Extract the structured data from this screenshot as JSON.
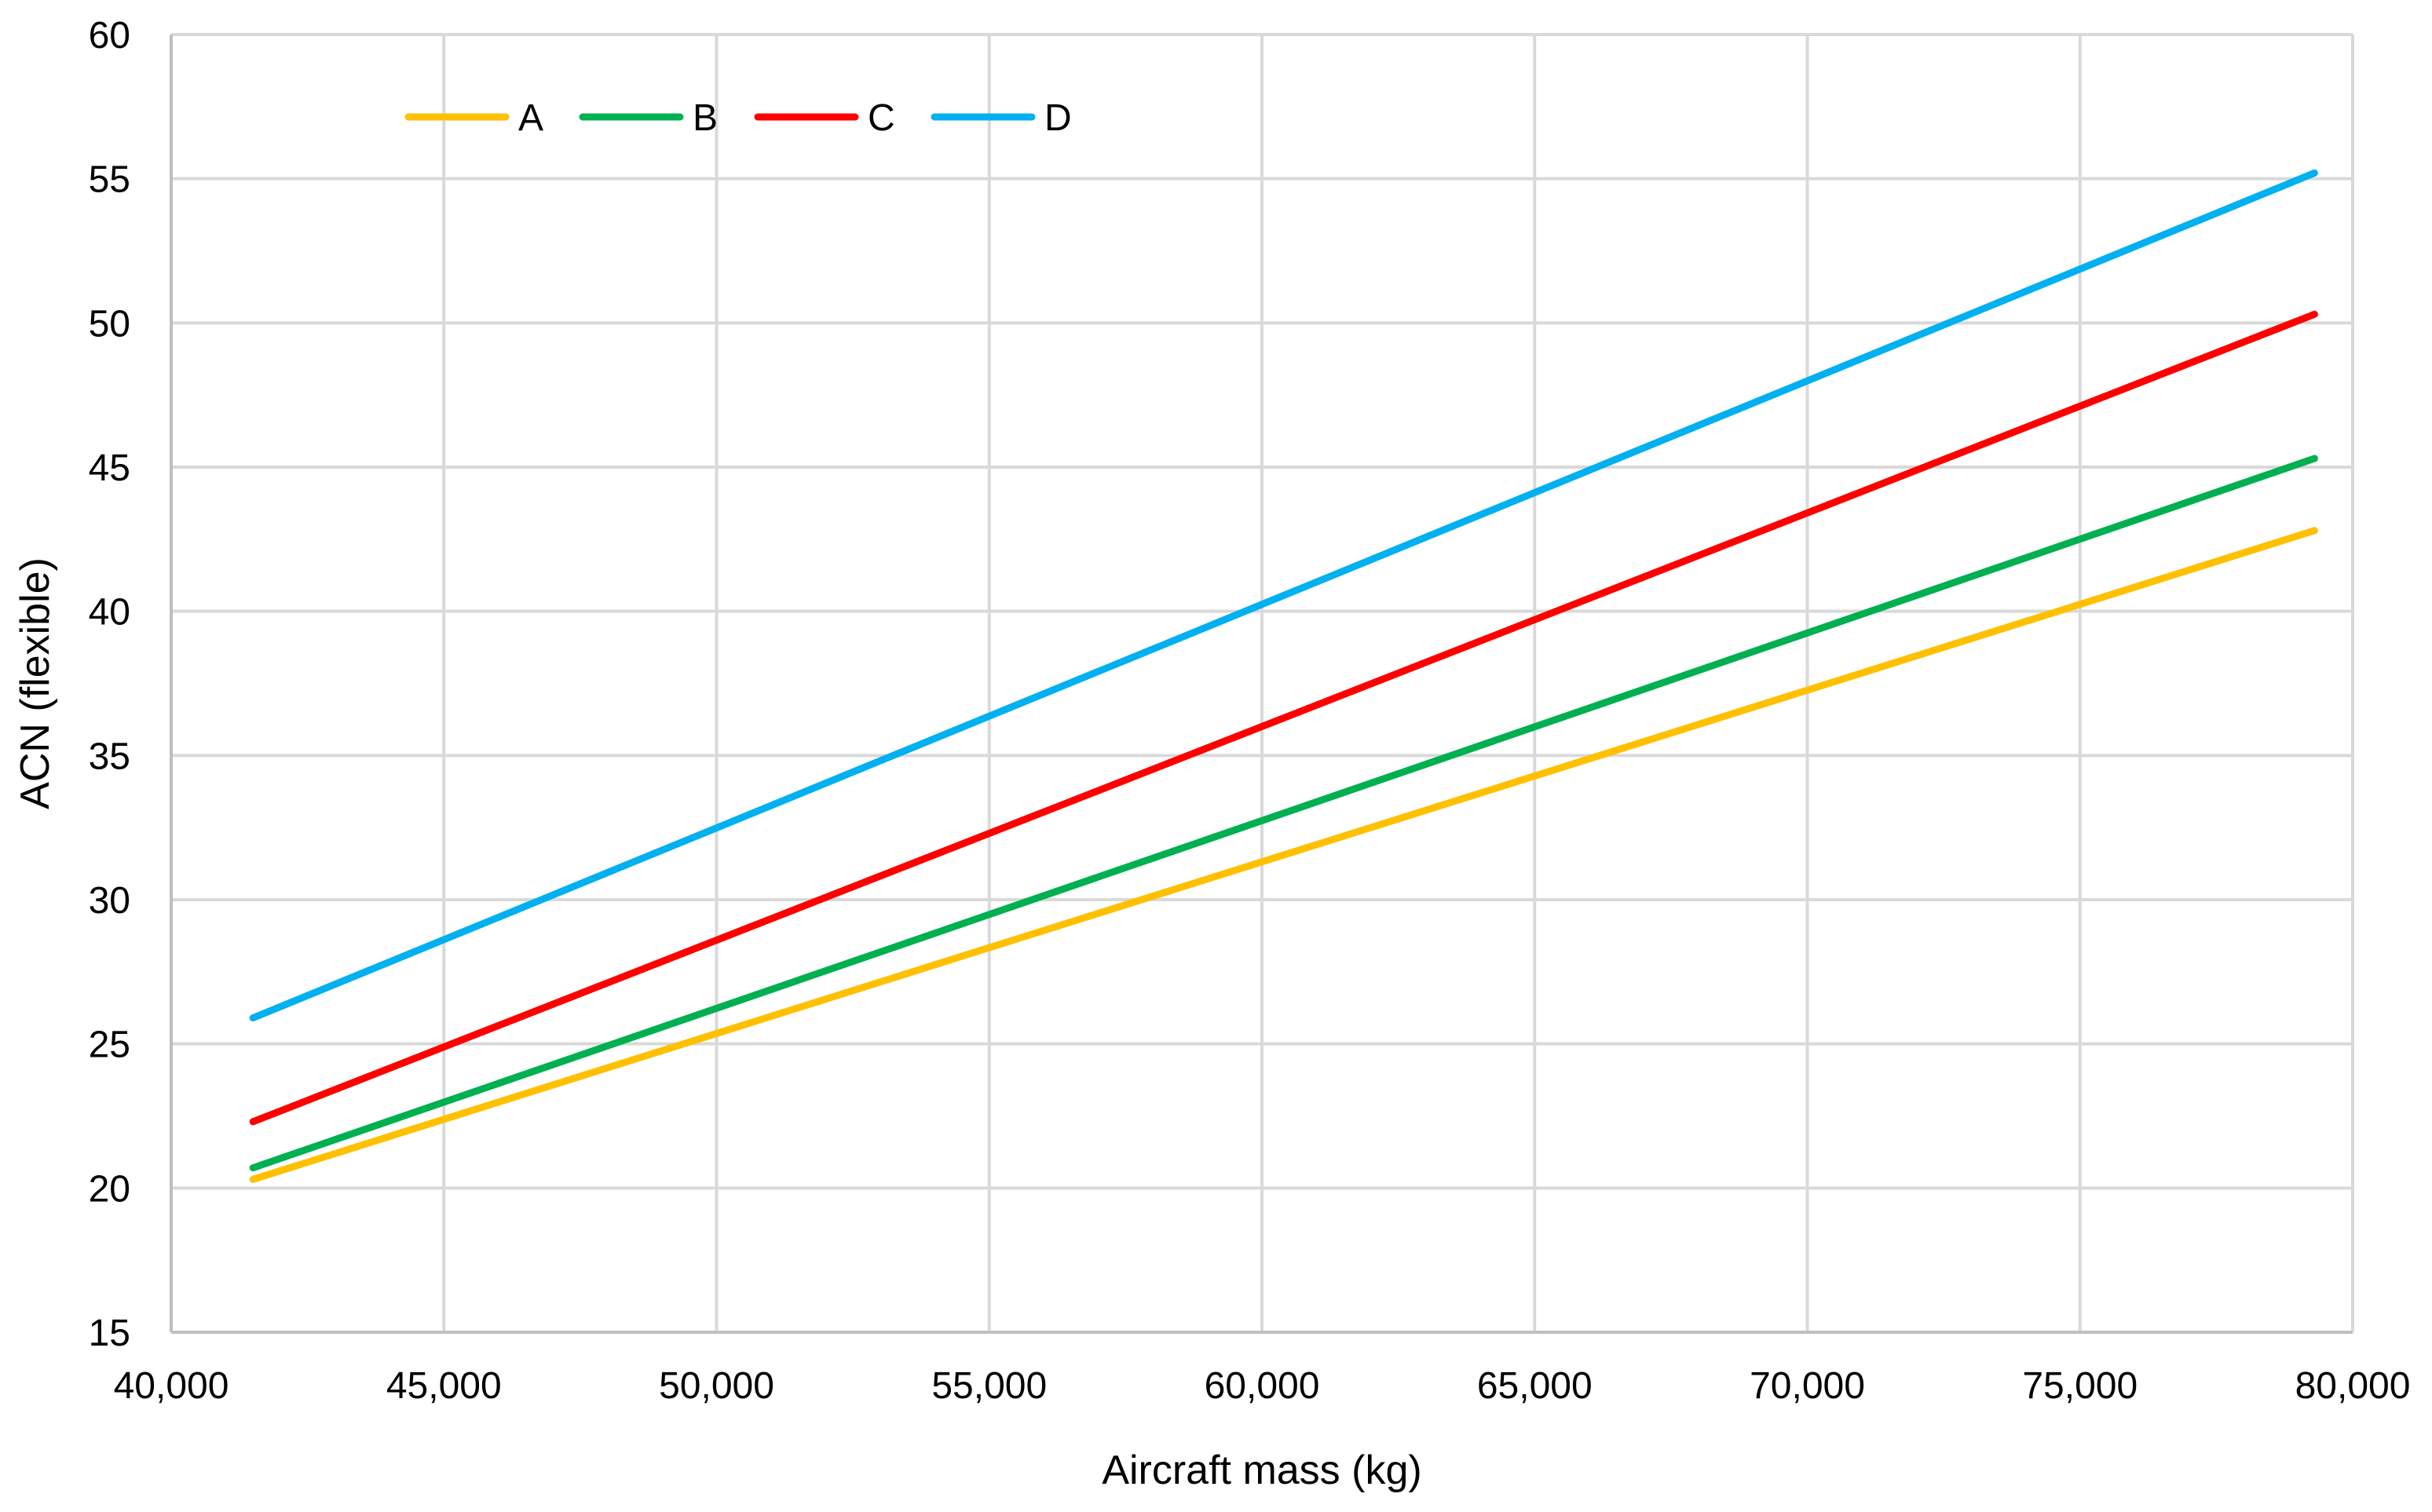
{
  "chart_data": {
    "type": "line",
    "xlabel": "Aircraft mass (kg)",
    "ylabel": "ACN (flexible)",
    "xlim": [
      40000,
      80000
    ],
    "ylim": [
      15,
      60
    ],
    "x_ticks": [
      40000,
      45000,
      50000,
      55000,
      60000,
      65000,
      70000,
      75000,
      80000
    ],
    "x_tick_labels": [
      "40,000",
      "45,000",
      "50,000",
      "55,000",
      "60,000",
      "65,000",
      "70,000",
      "75,000",
      "80,000"
    ],
    "y_ticks": [
      15,
      20,
      25,
      30,
      35,
      40,
      45,
      50,
      55,
      60
    ],
    "y_tick_labels": [
      "15",
      "20",
      "25",
      "30",
      "35",
      "40",
      "45",
      "50",
      "55",
      "60"
    ],
    "grid": true,
    "legend_position": "top-left",
    "series": [
      {
        "name": "A",
        "color": "#ffc000",
        "x": [
          41500,
          79300
        ],
        "y": [
          20.3,
          42.8
        ]
      },
      {
        "name": "B",
        "color": "#00b050",
        "x": [
          41500,
          79300
        ],
        "y": [
          20.7,
          45.3
        ]
      },
      {
        "name": "C",
        "color": "#ff0000",
        "x": [
          41500,
          79300
        ],
        "y": [
          22.3,
          50.3
        ]
      },
      {
        "name": "D",
        "color": "#00b0f0",
        "x": [
          41500,
          79300
        ],
        "y": [
          25.9,
          55.2
        ]
      }
    ]
  }
}
